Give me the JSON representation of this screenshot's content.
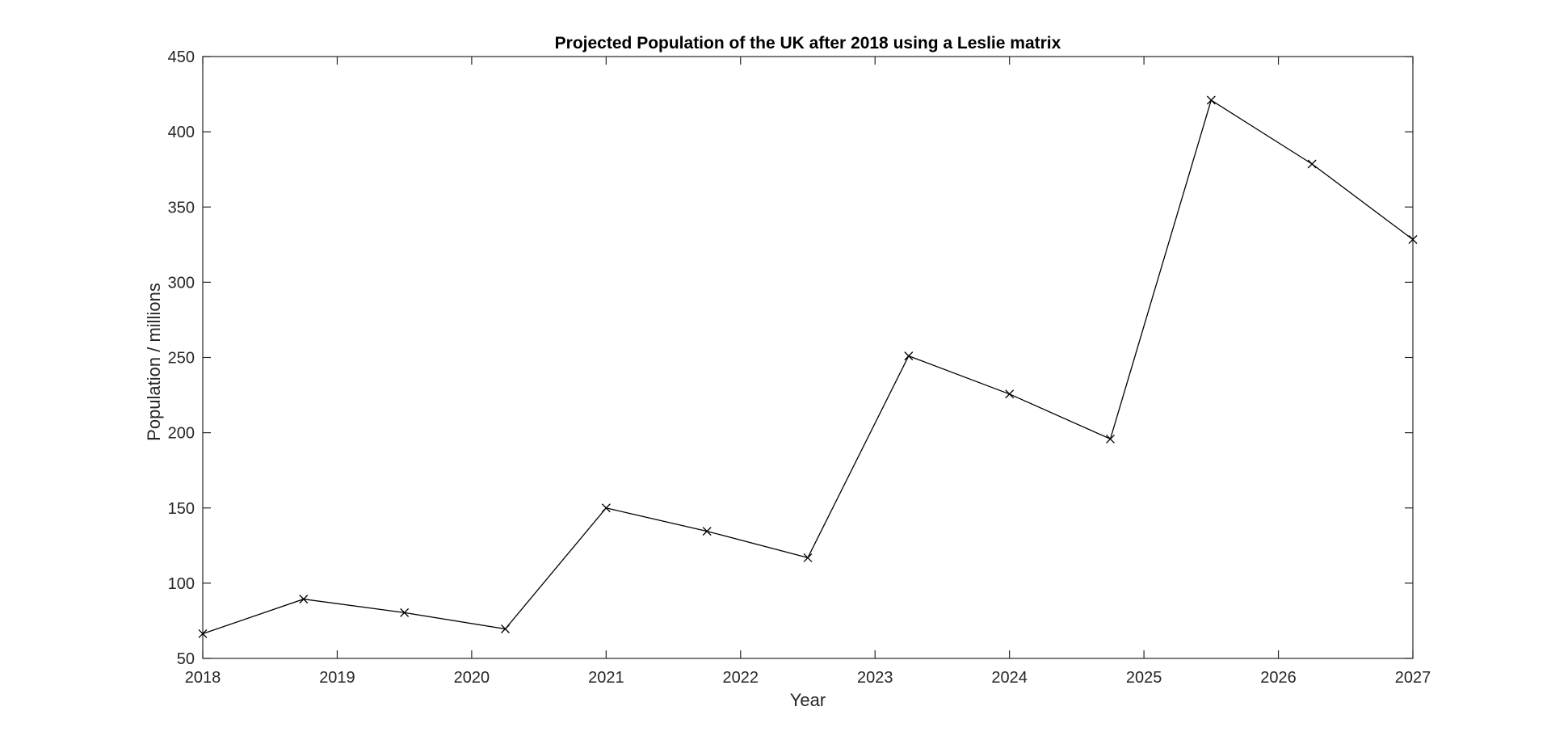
{
  "chart_data": {
    "type": "line",
    "title": "Projected Population of the UK after 2018 using a Leslie matrix",
    "xlabel": "Year",
    "ylabel": "Population / millions",
    "xlim": [
      2018,
      2027
    ],
    "ylim": [
      50,
      450
    ],
    "xticks": [
      2018,
      2019,
      2020,
      2021,
      2022,
      2023,
      2024,
      2025,
      2026,
      2027
    ],
    "yticks": [
      50,
      100,
      150,
      200,
      250,
      300,
      350,
      400,
      450
    ],
    "grid": false,
    "marker": "x",
    "line_color": "#000000",
    "series": [
      {
        "x": [
          2018,
          2018.75,
          2019.5,
          2020.25,
          2021,
          2021.75,
          2022.5,
          2023.25,
          2024,
          2024.75,
          2025.5,
          2026.25,
          2027
        ],
        "values": [
          66.4,
          89.4,
          80.4,
          69.6,
          150,
          134.5,
          116.9,
          251,
          225.7,
          195.8,
          421,
          378.6,
          328.4
        ]
      }
    ]
  }
}
